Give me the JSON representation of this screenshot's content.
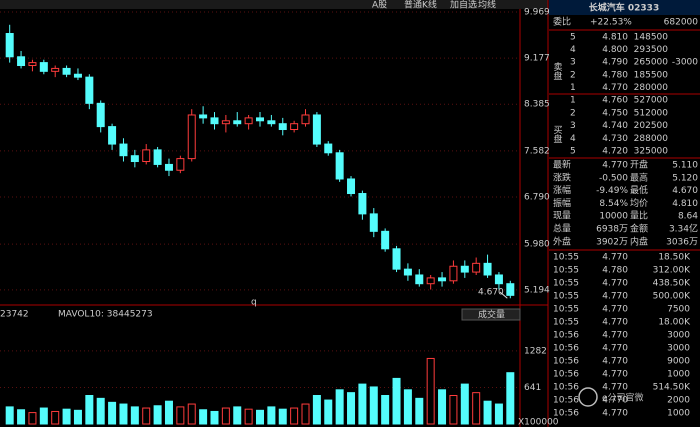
{
  "toolbar": [
    "A股",
    "普通K线",
    "加自选",
    "均线"
  ],
  "chart_data": [
    {
      "type": "candlestick",
      "values": [
        [
          9.6,
          9.75,
          9.1,
          9.2
        ],
        [
          9.2,
          9.3,
          9.0,
          9.05
        ],
        [
          9.05,
          9.15,
          8.95,
          9.1
        ],
        [
          9.1,
          9.15,
          8.9,
          8.95
        ],
        [
          8.95,
          9.05,
          8.85,
          9.0
        ],
        [
          9.0,
          9.05,
          8.85,
          8.9
        ],
        [
          8.9,
          9.0,
          8.8,
          8.85
        ],
        [
          8.85,
          8.9,
          8.3,
          8.4
        ],
        [
          8.4,
          8.45,
          7.9,
          8.0
        ],
        [
          8.0,
          8.05,
          7.6,
          7.7
        ],
        [
          7.7,
          7.8,
          7.4,
          7.5
        ],
        [
          7.5,
          7.6,
          7.3,
          7.4
        ],
        [
          7.4,
          7.7,
          7.35,
          7.6
        ],
        [
          7.6,
          7.65,
          7.3,
          7.35
        ],
        [
          7.35,
          7.45,
          7.15,
          7.25
        ],
        [
          7.25,
          7.5,
          7.2,
          7.45
        ],
        [
          7.45,
          8.3,
          7.4,
          8.2
        ],
        [
          8.2,
          8.35,
          8.05,
          8.15
        ],
        [
          8.15,
          8.25,
          7.95,
          8.05
        ],
        [
          8.05,
          8.2,
          7.9,
          8.1
        ],
        [
          8.1,
          8.25,
          8.0,
          8.05
        ],
        [
          8.05,
          8.2,
          7.95,
          8.15
        ],
        [
          8.15,
          8.25,
          8.0,
          8.1
        ],
        [
          8.1,
          8.2,
          8.0,
          8.05
        ],
        [
          8.05,
          8.15,
          7.85,
          7.95
        ],
        [
          7.95,
          8.1,
          7.9,
          8.05
        ],
        [
          8.05,
          8.3,
          8.0,
          8.2
        ],
        [
          8.2,
          8.25,
          7.65,
          7.7
        ],
        [
          7.7,
          7.75,
          7.5,
          7.55
        ],
        [
          7.55,
          7.6,
          7.05,
          7.1
        ],
        [
          7.1,
          7.15,
          6.8,
          6.85
        ],
        [
          6.85,
          6.9,
          6.4,
          6.5
        ],
        [
          6.5,
          6.6,
          6.1,
          6.2
        ],
        [
          6.2,
          6.25,
          5.85,
          5.9
        ],
        [
          5.9,
          5.95,
          5.5,
          5.55
        ],
        [
          5.55,
          5.65,
          5.35,
          5.45
        ],
        [
          5.45,
          5.55,
          5.25,
          5.3
        ],
        [
          5.3,
          5.45,
          5.2,
          5.4
        ],
        [
          5.4,
          5.5,
          5.25,
          5.35
        ],
        [
          5.35,
          5.7,
          5.3,
          5.6
        ],
        [
          5.6,
          5.7,
          5.4,
          5.5
        ],
        [
          5.5,
          5.75,
          5.45,
          5.65
        ],
        [
          5.65,
          5.8,
          5.4,
          5.45
        ],
        [
          5.45,
          5.5,
          5.2,
          5.3
        ],
        [
          5.3,
          5.35,
          5.05,
          5.1
        ]
      ],
      "ylim": [
        5.02,
        10.09
      ],
      "yticks": [
        9.969,
        9.177,
        8.385,
        7.582,
        {
          "value": 6.79,
          "label": "6.790"
        },
        {
          "value": 5.98,
          "label": "5.980"
        },
        5.194
      ],
      "grid": true,
      "up_color": "#ff3c3c",
      "down_color": "#54fcfc",
      "annotations": [
        "4.670",
        "q"
      ]
    },
    {
      "type": "bar",
      "title": "成交量",
      "values": [
        300,
        250,
        200,
        280,
        220,
        260,
        240,
        500,
        450,
        380,
        350,
        300,
        280,
        320,
        400,
        300,
        350,
        250,
        220,
        280,
        300,
        260,
        240,
        300,
        260,
        280,
        350,
        500,
        420,
        600,
        550,
        700,
        650,
        500,
        800,
        600,
        450,
        1150,
        600,
        500,
        700,
        550,
        400,
        350,
        900
      ],
      "ylim": [
        0,
        1386
      ],
      "yticks": [
        641,
        1282
      ],
      "unit_label": "X100000",
      "indicators": [
        "23742",
        "MAVOL10: 38445273"
      ]
    }
  ],
  "quote": {
    "title": "长城汽车 02333",
    "ratio": [
      "委比",
      "+22.53%",
      "682000"
    ],
    "sell_label": "卖盘",
    "buy_label": "买盘",
    "asks": [
      [
        "5",
        "4.810",
        "148500"
      ],
      [
        "4",
        "4.800",
        "293500"
      ],
      [
        "3",
        "4.790",
        "265000",
        "-3000"
      ],
      [
        "2",
        "4.780",
        "185500"
      ],
      [
        "1",
        "4.770",
        "280000"
      ]
    ],
    "bids": [
      [
        "1",
        "4.760",
        "527000"
      ],
      [
        "2",
        "4.750",
        "512000"
      ],
      [
        "3",
        "4.740",
        "202500"
      ],
      [
        "4",
        "4.730",
        "288000"
      ],
      [
        "5",
        "4.720",
        "325000"
      ]
    ],
    "stats": [
      [
        "最新",
        "4.770",
        "开盘",
        "5.110"
      ],
      [
        "涨跌",
        "-0.500",
        "最高",
        "5.120"
      ],
      [
        "涨幅",
        "-9.49%",
        "最低",
        "4.670"
      ],
      [
        "振幅",
        "8.54%",
        "均价",
        "4.810"
      ],
      [
        "现量",
        "10000",
        "量比",
        "8.64"
      ],
      [
        "总量",
        "6938万",
        "金额",
        "3.34亿"
      ],
      [
        "外盘",
        "3902万",
        "内盘",
        "3036万"
      ]
    ],
    "trades": [
      [
        "10:55",
        "4.770",
        "18.50K"
      ],
      [
        "10:55",
        "4.780",
        "312.00K"
      ],
      [
        "10:55",
        "4.770",
        "438.50K"
      ],
      [
        "10:55",
        "4.770",
        "500.00K"
      ],
      [
        "10:55",
        "4.770",
        "7500"
      ],
      [
        "10:55",
        "4.770",
        "18.00K"
      ],
      [
        "10:56",
        "4.770",
        "3000"
      ],
      [
        "10:56",
        "4.770",
        "3000"
      ],
      [
        "10:56",
        "4.770",
        "9000"
      ],
      [
        "10:56",
        "4.770",
        "1000"
      ],
      [
        "10:56",
        "4.770",
        "514.50K"
      ],
      [
        "10:56",
        "4.770",
        "2000"
      ],
      [
        "10:56",
        "4.770",
        "1000"
      ]
    ],
    "watermark": "e公司官微"
  }
}
